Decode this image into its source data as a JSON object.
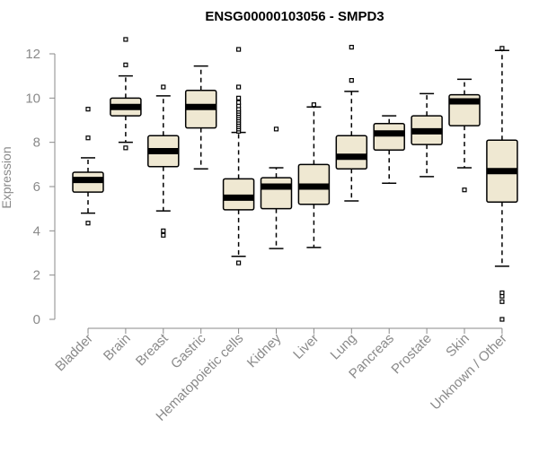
{
  "chart_data": {
    "type": "box",
    "title": "ENSG00000103056 - SMPD3",
    "xlabel": "",
    "ylabel": "Expression",
    "ylim": [
      0,
      12.6
    ],
    "yticks": [
      0,
      2,
      4,
      6,
      8,
      10,
      12
    ],
    "grid": false,
    "colors": {
      "box_fill": "#efe8d2",
      "box_stroke": "#000000",
      "median": "#000000",
      "axis": "#8a8a8a",
      "tick_label": "#8a8a8a",
      "title": "#000000"
    },
    "categories": [
      "Bladder",
      "Brain",
      "Breast",
      "Gastric",
      "Hematopoietic cells",
      "Kidney",
      "Liver",
      "Lung",
      "Pancreas",
      "Prostate",
      "Skin",
      "Unknown / Other"
    ],
    "series": [
      {
        "category": "Bladder",
        "min": 4.8,
        "q1": 5.75,
        "median": 6.3,
        "q3": 6.65,
        "max": 7.3,
        "outliers": [
          4.35,
          8.2,
          9.5
        ]
      },
      {
        "category": "Brain",
        "min": 8.0,
        "q1": 9.2,
        "median": 9.6,
        "q3": 10.0,
        "max": 11.0,
        "outliers": [
          7.75,
          11.5,
          12.65
        ]
      },
      {
        "category": "Breast",
        "min": 4.9,
        "q1": 6.9,
        "median": 7.6,
        "q3": 8.3,
        "max": 10.1,
        "outliers": [
          3.8,
          4.0,
          10.5
        ]
      },
      {
        "category": "Gastric",
        "min": 6.8,
        "q1": 8.65,
        "median": 9.6,
        "q3": 10.35,
        "max": 11.45,
        "outliers": []
      },
      {
        "category": "Hematopoietic cells",
        "min": 2.85,
        "q1": 4.95,
        "median": 5.5,
        "q3": 6.35,
        "max": 8.45,
        "outliers": [
          2.55,
          8.5,
          8.6,
          8.7,
          8.8,
          8.9,
          9.0,
          9.1,
          9.2,
          9.3,
          9.4,
          9.5,
          9.65,
          9.8,
          10.0,
          10.5,
          12.2
        ]
      },
      {
        "category": "Kidney",
        "min": 3.2,
        "q1": 5.0,
        "median": 6.0,
        "q3": 6.4,
        "max": 6.85,
        "outliers": [
          8.6
        ]
      },
      {
        "category": "Liver",
        "min": 3.25,
        "q1": 5.2,
        "median": 6.0,
        "q3": 7.0,
        "max": 9.6,
        "outliers": [
          9.7
        ]
      },
      {
        "category": "Lung",
        "min": 5.35,
        "q1": 6.8,
        "median": 7.35,
        "q3": 8.3,
        "max": 10.3,
        "outliers": [
          10.8,
          12.3
        ]
      },
      {
        "category": "Pancreas",
        "min": 6.15,
        "q1": 7.65,
        "median": 8.4,
        "q3": 8.85,
        "max": 9.2,
        "outliers": []
      },
      {
        "category": "Prostate",
        "min": 6.45,
        "q1": 7.9,
        "median": 8.5,
        "q3": 9.2,
        "max": 10.2,
        "outliers": []
      },
      {
        "category": "Skin",
        "min": 6.85,
        "q1": 8.75,
        "median": 9.85,
        "q3": 10.15,
        "max": 10.85,
        "outliers": [
          5.85
        ]
      },
      {
        "category": "Unknown / Other",
        "min": 2.4,
        "q1": 5.3,
        "median": 6.7,
        "q3": 8.1,
        "max": 12.15,
        "outliers": [
          0.0,
          0.8,
          1.05,
          1.2,
          12.25
        ]
      }
    ]
  }
}
